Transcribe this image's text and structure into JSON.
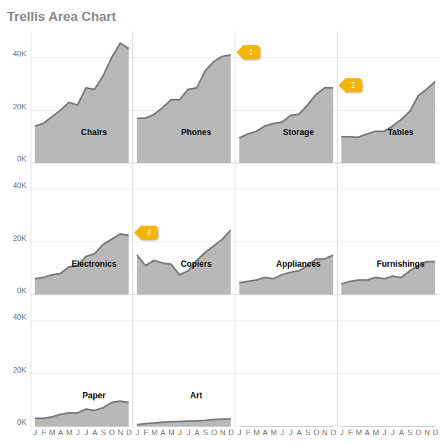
{
  "chart_data": {
    "type": "area",
    "title": "Trellis Area Chart",
    "categories": [
      "J",
      "F",
      "M",
      "A",
      "M",
      "J",
      "J",
      "A",
      "S",
      "O",
      "N",
      "D"
    ],
    "ylim": [
      0,
      50000
    ],
    "yticks": [
      {
        "value": 0,
        "label": "0K"
      },
      {
        "value": 20000,
        "label": "20K"
      },
      {
        "value": 40000,
        "label": "40K"
      }
    ],
    "grid": true,
    "series": [
      {
        "name": "Chairs",
        "color": "#b8b8b8",
        "values": [
          14000,
          15000,
          17500,
          20000,
          23000,
          22000,
          28500,
          28000,
          33000,
          40000,
          45500,
          43500
        ]
      },
      {
        "name": "Phones",
        "color": "#b8b8b8",
        "values": [
          17000,
          17000,
          18500,
          21000,
          24000,
          24000,
          28000,
          28500,
          35000,
          38500,
          40500,
          41000
        ]
      },
      {
        "name": "Storage",
        "color": "#b8b8b8",
        "values": [
          9500,
          11000,
          12000,
          14000,
          15000,
          15500,
          18000,
          18500,
          22000,
          26000,
          28500,
          28500
        ]
      },
      {
        "name": "Tables",
        "color": "#b8b8b8",
        "values": [
          10000,
          10000,
          9800,
          11000,
          12000,
          12000,
          14000,
          16500,
          19500,
          25500,
          28000,
          31000
        ]
      },
      {
        "name": "Electronics",
        "color": "#b8b8b8",
        "values": [
          6000,
          6500,
          7500,
          8000,
          10500,
          11000,
          14500,
          15500,
          19000,
          21000,
          23000,
          22500
        ]
      },
      {
        "name": "Copiers",
        "color": "#b8b8b8",
        "values": [
          15000,
          11000,
          13000,
          12000,
          11500,
          7500,
          9000,
          13000,
          16000,
          18500,
          21000,
          24500
        ]
      },
      {
        "name": "Appliances",
        "color": "#b8b8b8",
        "values": [
          4500,
          5000,
          5500,
          6500,
          6000,
          7500,
          8500,
          9000,
          11000,
          13500,
          13500,
          15000
        ]
      },
      {
        "name": "Furnishings",
        "color": "#b8b8b8",
        "values": [
          4000,
          5000,
          5500,
          5500,
          6500,
          6000,
          7000,
          6500,
          9000,
          11000,
          12500,
          12500
        ]
      },
      {
        "name": "Paper",
        "color": "#b8b8b8",
        "values": [
          3000,
          3000,
          3500,
          4500,
          5000,
          5000,
          6500,
          6000,
          7000,
          9000,
          9500,
          9000
        ]
      },
      {
        "name": "Art",
        "color": "#b8b8b8",
        "values": [
          500,
          1000,
          1200,
          1500,
          1700,
          1800,
          2000,
          2000,
          2200,
          2500,
          2700,
          2800
        ]
      }
    ],
    "annotations": [
      {
        "text": "1",
        "series": "Phones"
      },
      {
        "text": "2",
        "series": "Storage"
      },
      {
        "text": "3",
        "series": "Electronics"
      }
    ]
  }
}
